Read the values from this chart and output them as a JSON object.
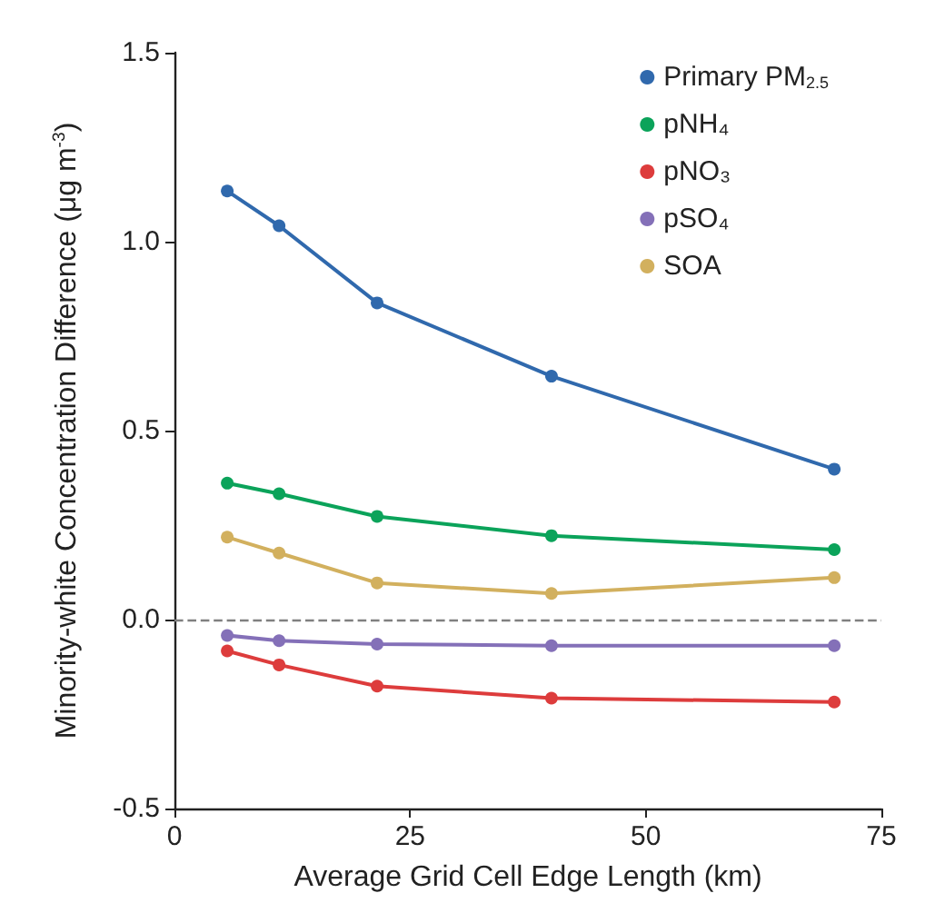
{
  "chart_data": {
    "type": "line",
    "xlabel": "Average Grid Cell Edge Length (km)",
    "ylabel": "Minority-white Concentration Difference (μg m$^{-3}$)",
    "x": [
      5.6,
      11.1,
      21.5,
      40,
      70
    ],
    "xlim": [
      0,
      75
    ],
    "xticks": [
      0,
      25,
      50,
      75
    ],
    "ylim": [
      -0.5,
      1.5
    ],
    "yticks": [
      -0.5,
      {
        "value": 0,
        "label": "0.0"
      },
      0.5,
      {
        "value": 1,
        "label": "1.0"
      },
      1.5
    ],
    "series": [
      {
        "name": "Primary PM$_{2.5}$",
        "color": "#3069ad",
        "values": [
          1.134,
          1.042,
          0.838,
          0.644,
          0.398
        ]
      },
      {
        "name": "pNH₄",
        "color": "#0ba35a",
        "values": [
          0.361,
          0.333,
          0.273,
          0.222,
          0.185
        ]
      },
      {
        "name": "pNO₃",
        "color": "#dd3c3c",
        "values": [
          -0.083,
          -0.12,
          -0.176,
          -0.208,
          -0.218
        ]
      },
      {
        "name": "pSO₄",
        "color": "#8470b8",
        "values": [
          -0.042,
          -0.056,
          -0.065,
          -0.069,
          -0.069
        ]
      },
      {
        "name": "SOA",
        "color": "#d2b05e",
        "values": [
          0.218,
          0.176,
          0.097,
          0.069,
          0.111
        ]
      }
    ],
    "ref_lines": [
      {
        "axis": "y",
        "value": 0,
        "color": "#808080",
        "line_style": "dashed"
      }
    ],
    "grid": false,
    "legend": "top right",
    "marker": "circle",
    "line_style": "solid"
  }
}
